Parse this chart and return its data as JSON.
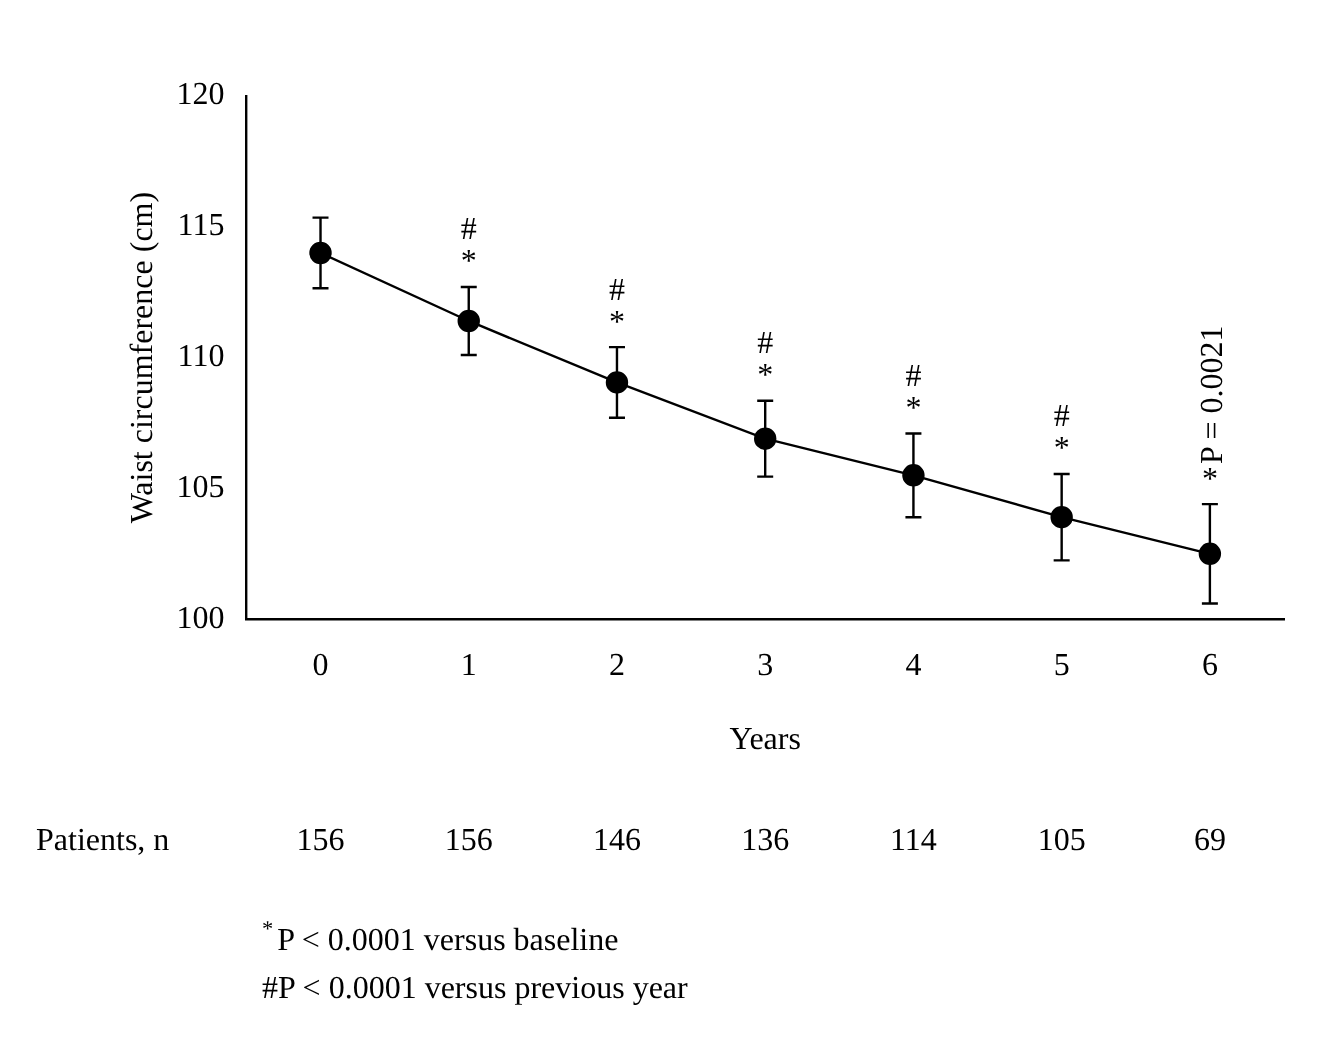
{
  "chart_data": {
    "type": "line",
    "xlabel": "Years",
    "ylabel": "Waist circumference (cm)",
    "categories": [
      "0",
      "1",
      "2",
      "3",
      "4",
      "5",
      "6"
    ],
    "series": [
      {
        "color": "#000000",
        "values": [
          114.0,
          111.4,
          109.05,
          106.9,
          105.5,
          103.9,
          102.5
        ],
        "errors": [
          1.35,
          1.3,
          1.35,
          1.45,
          1.6,
          1.65,
          1.9
        ]
      }
    ],
    "ylim": [
      100,
      120
    ],
    "yticks": [
      100,
      105,
      110,
      115,
      120
    ],
    "grid": false,
    "legend": false,
    "marker": "circle",
    "line_style": "solid",
    "annotations": [
      {
        "text": "*",
        "x": "1",
        "y": 112.7
      },
      {
        "text": "#",
        "x": "1",
        "y": 112.7
      },
      {
        "text": "*",
        "x": "2",
        "y": 110.4
      },
      {
        "text": "#",
        "x": "2",
        "y": 110.4
      },
      {
        "text": "*",
        "x": "3",
        "y": 108.35
      },
      {
        "text": "#",
        "x": "3",
        "y": 108.35
      },
      {
        "text": "*",
        "x": "4",
        "y": 107.1
      },
      {
        "text": "#",
        "x": "4",
        "y": 107.1
      },
      {
        "text": "*",
        "x": "5",
        "y": 105.55
      },
      {
        "text": "#",
        "x": "5",
        "y": 105.55
      },
      {
        "text": "*",
        "x": "6",
        "y": 104.4
      },
      {
        "text": "P = 0.0021",
        "x": "6",
        "y": 104.4
      },
      "Patients, n",
      "156",
      "156",
      "146",
      "136",
      "114",
      "105",
      "69",
      "$^{*}$P < 0.0001 versus baseline",
      "#P < 0.0001 versus previous year"
    ]
  }
}
